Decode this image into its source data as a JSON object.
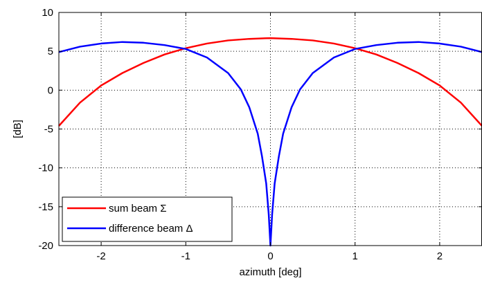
{
  "chart_data": {
    "type": "line",
    "title": "",
    "xlabel": "azimuth [deg]",
    "ylabel": "[dB]",
    "xlim": [
      -2.5,
      2.5
    ],
    "ylim": [
      -20,
      10
    ],
    "xticks": [
      -2,
      -1,
      0,
      1,
      2
    ],
    "xtick_labels": [
      "-2",
      "-1",
      "0",
      "1",
      "2"
    ],
    "yticks": [
      -20,
      -15,
      -10,
      -5,
      0,
      5,
      10
    ],
    "ytick_labels": [
      "-20",
      "-15",
      "-10",
      "-5",
      "0",
      "5",
      "10"
    ],
    "grid": true,
    "legend_position": "bottom-left",
    "series": [
      {
        "name": "sum beam Σ",
        "color": "#ff0000",
        "x": [
          -2.5,
          -2.25,
          -2.0,
          -1.75,
          -1.5,
          -1.25,
          -1.0,
          -0.75,
          -0.5,
          -0.25,
          0.0,
          0.25,
          0.5,
          0.75,
          1.0,
          1.25,
          1.5,
          1.75,
          2.0,
          2.25,
          2.5
        ],
        "y": [
          -4.6,
          -1.6,
          0.6,
          2.2,
          3.5,
          4.6,
          5.4,
          6.0,
          6.4,
          6.6,
          6.7,
          6.6,
          6.4,
          6.0,
          5.4,
          4.6,
          3.5,
          2.2,
          0.6,
          -1.6,
          -4.6
        ]
      },
      {
        "name": "difference beam Δ",
        "color": "#0000ff",
        "x": [
          -2.5,
          -2.25,
          -2.0,
          -1.75,
          -1.5,
          -1.25,
          -1.0,
          -0.75,
          -0.5,
          -0.35,
          -0.25,
          -0.15,
          -0.1,
          -0.05,
          -0.02,
          0.0,
          0.02,
          0.05,
          0.1,
          0.15,
          0.25,
          0.35,
          0.5,
          0.75,
          1.0,
          1.25,
          1.5,
          1.75,
          2.0,
          2.25,
          2.5
        ],
        "y": [
          4.9,
          5.6,
          6.0,
          6.2,
          6.1,
          5.8,
          5.3,
          4.2,
          2.2,
          0.1,
          -2.2,
          -5.6,
          -8.5,
          -12.0,
          -16.0,
          -20.0,
          -16.0,
          -12.0,
          -8.5,
          -5.6,
          -2.2,
          0.1,
          2.2,
          4.2,
          5.3,
          5.8,
          6.1,
          6.2,
          6.0,
          5.6,
          4.9
        ]
      }
    ]
  }
}
